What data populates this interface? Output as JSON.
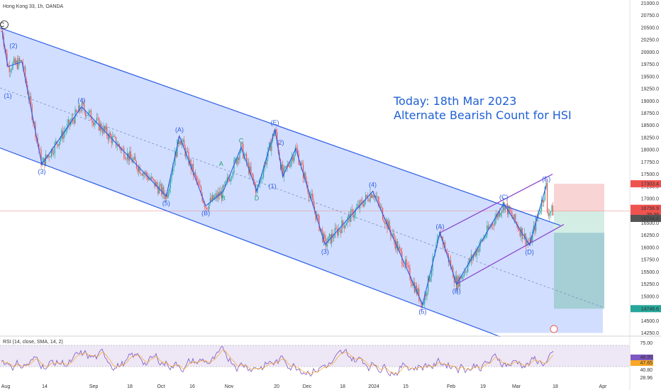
{
  "header": {
    "symbol": "Hong Kong 33, 1h, OANDA",
    "rsi_label": "RSI (14, close, SMA, 14, 2)"
  },
  "annotation": {
    "line1": "Today: 18th Mar 2023",
    "line2": "Alternate Bearish Count for HSI"
  },
  "colors": {
    "channel_fill": "#c9d8ff",
    "channel_line": "#2b5ce6",
    "wave_line": "#2b5ce6",
    "alt_wave_line": "#27a17a",
    "wedge_line": "#8b3fd0",
    "candle_up": "#26a69a",
    "candle_down": "#ef5350",
    "rsi_line": "#7e57c2",
    "rsi_band": "#ede7f6",
    "stop_zone": "#f8d4d4",
    "profit_zone": "#d3ede4",
    "target_zone": "#7fb4c9",
    "price_badge": "#ef5350",
    "target_badge": "#26a69a"
  },
  "chart_data": {
    "type": "candlestick",
    "price_axis": {
      "ylim": [
        14250,
        21000
      ],
      "ticks": [
        "21000.0",
        "20750.0",
        "20500.0",
        "20250.0",
        "20000.0",
        "19750.0",
        "19500.0",
        "19250.0",
        "19000.0",
        "18750.0",
        "18500.0",
        "18250.0",
        "18000.0",
        "17750.0",
        "17500.0",
        "17250.0",
        "17000.0",
        "16750.0",
        "16500.0",
        "16250.0",
        "16000.0",
        "15750.0",
        "15500.0",
        "15250.0",
        "15000.0",
        "14750.0",
        "14500.0",
        "14250.0"
      ]
    },
    "time_axis": {
      "labels": [
        "Aug",
        "14",
        "Sep",
        "18",
        "Oct",
        "16",
        "Nov",
        "20",
        "Dec",
        "18",
        "2024",
        "15",
        "Feb",
        "19",
        "Mar",
        "18",
        "Apr"
      ]
    },
    "price_labels": {
      "stop_price": "17303.4",
      "current_price": "16756.9",
      "countdown": "35:39",
      "entry_price": "16744.4",
      "target_price": "14746.6"
    },
    "rsi": {
      "ticks": [
        "75.00",
        "48.95",
        "47.65",
        "40.80",
        "28.96"
      ],
      "current_values": [
        "48.95",
        "47.65"
      ]
    },
    "wave_path": [
      {
        "t": "Aug 1",
        "price": 20430
      },
      {
        "t": "Aug 3",
        "price": 19700
      },
      {
        "t": "Aug 8",
        "price": 19800
      },
      {
        "t": "Aug 15",
        "price": 17700
      },
      {
        "t": "Aug 29",
        "price": 18880
      },
      {
        "t": "Oct 5",
        "price": 17050
      },
      {
        "t": "Oct 11",
        "price": 18280
      },
      {
        "t": "Oct 23",
        "price": 16850
      },
      {
        "t": "Oct 31",
        "price": 17150
      },
      {
        "t": "Nov 7",
        "price": 18050
      },
      {
        "t": "Nov 13",
        "price": 17150
      },
      {
        "t": "Nov 20",
        "price": 18420
      },
      {
        "t": "Nov 23",
        "price": 17450
      },
      {
        "t": "Nov 28",
        "price": 18020
      },
      {
        "t": "Dec 11",
        "price": 16060
      },
      {
        "t": "Jan 2",
        "price": 17150
      },
      {
        "t": "Jan 22",
        "price": 14830
      },
      {
        "t": "Jan 29",
        "price": 16300
      },
      {
        "t": "Feb 5",
        "price": 15250
      },
      {
        "t": "Feb 26",
        "price": 16900
      },
      {
        "t": "Mar 7",
        "price": 16050
      },
      {
        "t": "Mar 13",
        "price": 17270
      }
    ],
    "wave_labels": [
      {
        "label": "C",
        "t": "Aug 1",
        "price": 20430,
        "pos": "above",
        "style": "circled"
      },
      {
        "label": "(2)",
        "t": "Aug 5",
        "price": 20000,
        "pos": "above"
      },
      {
        "label": "(1)",
        "t": "Aug 3",
        "price": 19250,
        "pos": "below"
      },
      {
        "label": "(3)",
        "t": "Aug 15",
        "price": 17700,
        "pos": "below"
      },
      {
        "label": "(4)",
        "t": "Aug 29",
        "price": 18880,
        "pos": "above"
      },
      {
        "label": "(A)",
        "t": "Oct 11",
        "price": 18280,
        "pos": "above"
      },
      {
        "label": "(5)",
        "t": "Oct 5",
        "price": 17050,
        "pos": "below"
      },
      {
        "label": "(B)",
        "t": "Oct 23",
        "price": 16850,
        "pos": "below"
      },
      {
        "label": "A",
        "t": "Oct 30",
        "price": 17580,
        "pos": "above",
        "style": "alt"
      },
      {
        "label": "B",
        "t": "Oct 31",
        "price": 17150,
        "pos": "below",
        "style": "alt"
      },
      {
        "label": "C",
        "t": "Nov 7",
        "price": 18050,
        "pos": "above",
        "style": "alt"
      },
      {
        "label": "D",
        "t": "Nov 13",
        "price": 17150,
        "pos": "below",
        "style": "alt"
      },
      {
        "label": "(E)",
        "t": "Nov 20",
        "price": 18420,
        "pos": "above"
      },
      {
        "label": "(1)",
        "t": "Nov 19",
        "price": 17400,
        "pos": "below"
      },
      {
        "label": "(2)",
        "t": "Nov 22",
        "price": 18020,
        "pos": "above"
      },
      {
        "label": "(3)",
        "t": "Dec 11",
        "price": 16060,
        "pos": "below"
      },
      {
        "label": "(4)",
        "t": "Jan 2",
        "price": 17150,
        "pos": "above"
      },
      {
        "label": "(5)",
        "t": "Jan 22",
        "price": 14830,
        "pos": "below"
      },
      {
        "label": "(A)",
        "t": "Jan 29",
        "price": 16300,
        "pos": "above"
      },
      {
        "label": "(B)",
        "t": "Feb 5",
        "price": 15250,
        "pos": "below"
      },
      {
        "label": "(C)",
        "t": "Feb 26",
        "price": 16900,
        "pos": "above"
      },
      {
        "label": "(D)",
        "t": "Mar 7",
        "price": 16050,
        "pos": "below"
      },
      {
        "label": "(E)",
        "t": "Mar 13",
        "price": 17270,
        "pos": "above"
      }
    ],
    "channel": {
      "upper": [
        {
          "t": "Aug 1",
          "price": 20480
        },
        {
          "t": "Mar 19",
          "price": 16430
        }
      ],
      "lower": [
        {
          "t": "Aug 1",
          "price": 18020
        },
        {
          "t": "Feb 20",
          "price": 14250
        }
      ],
      "mid": [
        {
          "t": "Aug 1",
          "price": 19250
        },
        {
          "t": "Apr 1",
          "price": 14800
        }
      ]
    },
    "wedge": {
      "upper": [
        {
          "t": "Jan 29",
          "price": 16300
        },
        {
          "t": "Mar 14",
          "price": 17500
        }
      ],
      "lower": [
        {
          "t": "Feb 5",
          "price": 15250
        },
        {
          "t": "Mar 18",
          "price": 16470
        }
      ]
    },
    "position_tool": {
      "side": "short",
      "entry": 16744.4,
      "stop": 17303.4,
      "target": 14746.6
    },
    "legend": "none",
    "grid": false
  }
}
